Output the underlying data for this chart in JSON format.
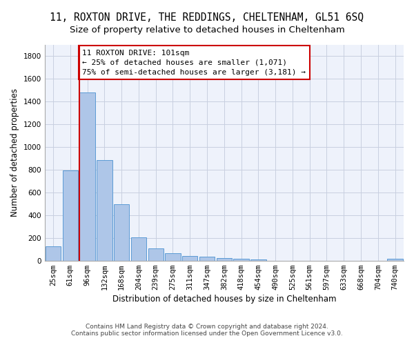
{
  "title1": "11, ROXTON DRIVE, THE REDDINGS, CHELTENHAM, GL51 6SQ",
  "title2": "Size of property relative to detached houses in Cheltenham",
  "xlabel": "Distribution of detached houses by size in Cheltenham",
  "ylabel": "Number of detached properties",
  "categories": [
    "25sqm",
    "61sqm",
    "96sqm",
    "132sqm",
    "168sqm",
    "204sqm",
    "239sqm",
    "275sqm",
    "311sqm",
    "347sqm",
    "382sqm",
    "418sqm",
    "454sqm",
    "490sqm",
    "525sqm",
    "561sqm",
    "597sqm",
    "633sqm",
    "668sqm",
    "704sqm",
    "740sqm"
  ],
  "values": [
    125,
    795,
    1480,
    885,
    495,
    205,
    105,
    65,
    38,
    32,
    25,
    18,
    10,
    0,
    0,
    0,
    0,
    0,
    0,
    0,
    18
  ],
  "bar_color": "#aec6e8",
  "bar_edgecolor": "#5b9bd5",
  "redline_x": 1.55,
  "annotation_line1": "11 ROXTON DRIVE: 101sqm",
  "annotation_line2": "← 25% of detached houses are smaller (1,071)",
  "annotation_line3": "75% of semi-detached houses are larger (3,181) →",
  "annotation_box_color": "#ffffff",
  "annotation_box_edgecolor": "#cc0000",
  "ylim": [
    0,
    1900
  ],
  "yticks": [
    0,
    200,
    400,
    600,
    800,
    1000,
    1200,
    1400,
    1600,
    1800
  ],
  "footer1": "Contains HM Land Registry data © Crown copyright and database right 2024.",
  "footer2": "Contains public sector information licensed under the Open Government Licence v3.0.",
  "bg_color": "#eef2fb",
  "grid_color": "#c8cfe0",
  "title1_fontsize": 10.5,
  "title2_fontsize": 9.5,
  "axis_label_fontsize": 8.5,
  "tick_fontsize": 7.5,
  "annotation_fontsize": 8,
  "footer_fontsize": 6.5
}
